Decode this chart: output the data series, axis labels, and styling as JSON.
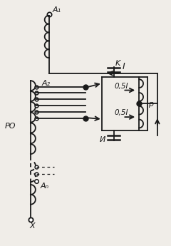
{
  "bg_color": "#f0ede8",
  "line_color": "#1a1a1a",
  "label_A1": "A₁",
  "label_A2": "A₂",
  "label_An": "Aₙ",
  "label_X": "X",
  "label_I": "I",
  "label_K": "K",
  "label_U": "И",
  "label_p": "p",
  "label_PO": "PO",
  "label_05I_top": "0,5I",
  "label_05I_bot": "0,5I",
  "figsize": [
    2.4,
    3.45
  ],
  "dpi": 100
}
